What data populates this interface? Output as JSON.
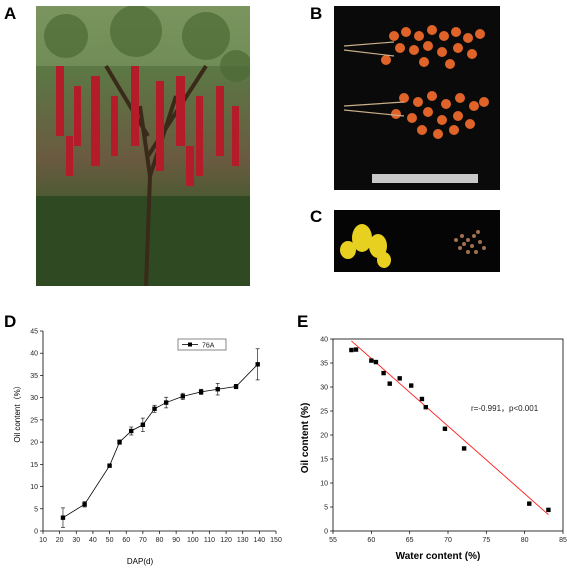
{
  "panels": {
    "a": "A",
    "b": "B",
    "c": "C",
    "d": "D",
    "e": "E"
  },
  "chart_data": [
    {
      "type": "line",
      "panel": "D",
      "title": "",
      "xlabel": "DAP(d)",
      "ylabel": "Oil content（%）",
      "xlim": [
        10,
        150
      ],
      "ylim": [
        0,
        45
      ],
      "xticks": [
        10,
        20,
        30,
        40,
        50,
        60,
        70,
        80,
        90,
        100,
        110,
        120,
        130,
        140,
        150
      ],
      "yticks": [
        0,
        5,
        10,
        15,
        20,
        25,
        30,
        35,
        40,
        45
      ],
      "legend": "top-right",
      "series": [
        {
          "name": "76A",
          "x": [
            22,
            35,
            50,
            56,
            63,
            70,
            77,
            84,
            94,
            105,
            115,
            126,
            139
          ],
          "y": [
            3.0,
            6.0,
            14.7,
            20.0,
            22.5,
            23.9,
            27.5,
            28.9,
            30.3,
            31.3,
            31.9,
            32.5,
            37.5
          ],
          "err": [
            2.2,
            0.6,
            0.3,
            0.5,
            0.9,
            1.5,
            0.8,
            1.2,
            0.7,
            0.6,
            1.3,
            0.5,
            3.5
          ]
        }
      ],
      "grid": false
    },
    {
      "type": "scatter",
      "panel": "E",
      "title": "",
      "xlabel": "Water content (%)",
      "ylabel": "Oil content (%)",
      "xlim": [
        55,
        85
      ],
      "ylim": [
        0,
        40
      ],
      "xticks": [
        55,
        60,
        65,
        70,
        75,
        80,
        85
      ],
      "yticks": [
        0,
        5,
        10,
        15,
        20,
        25,
        30,
        35,
        40
      ],
      "annotation": "r=-0.991，p<0.001",
      "series": [
        {
          "x": [
            57.4,
            58.0,
            60.0,
            60.6,
            61.6,
            62.4,
            63.7,
            65.2,
            66.6,
            67.1,
            69.6,
            72.1,
            80.6,
            83.1
          ],
          "y": [
            37.7,
            37.8,
            35.5,
            35.2,
            32.9,
            30.7,
            31.8,
            30.3,
            27.5,
            25.8,
            21.3,
            17.2,
            5.7,
            4.4
          ]
        }
      ],
      "fit_line": {
        "x": [
          57.4,
          83.1
        ],
        "y": [
          39.6,
          3.4
        ],
        "color": "#ff2020"
      },
      "grid": false
    }
  ]
}
